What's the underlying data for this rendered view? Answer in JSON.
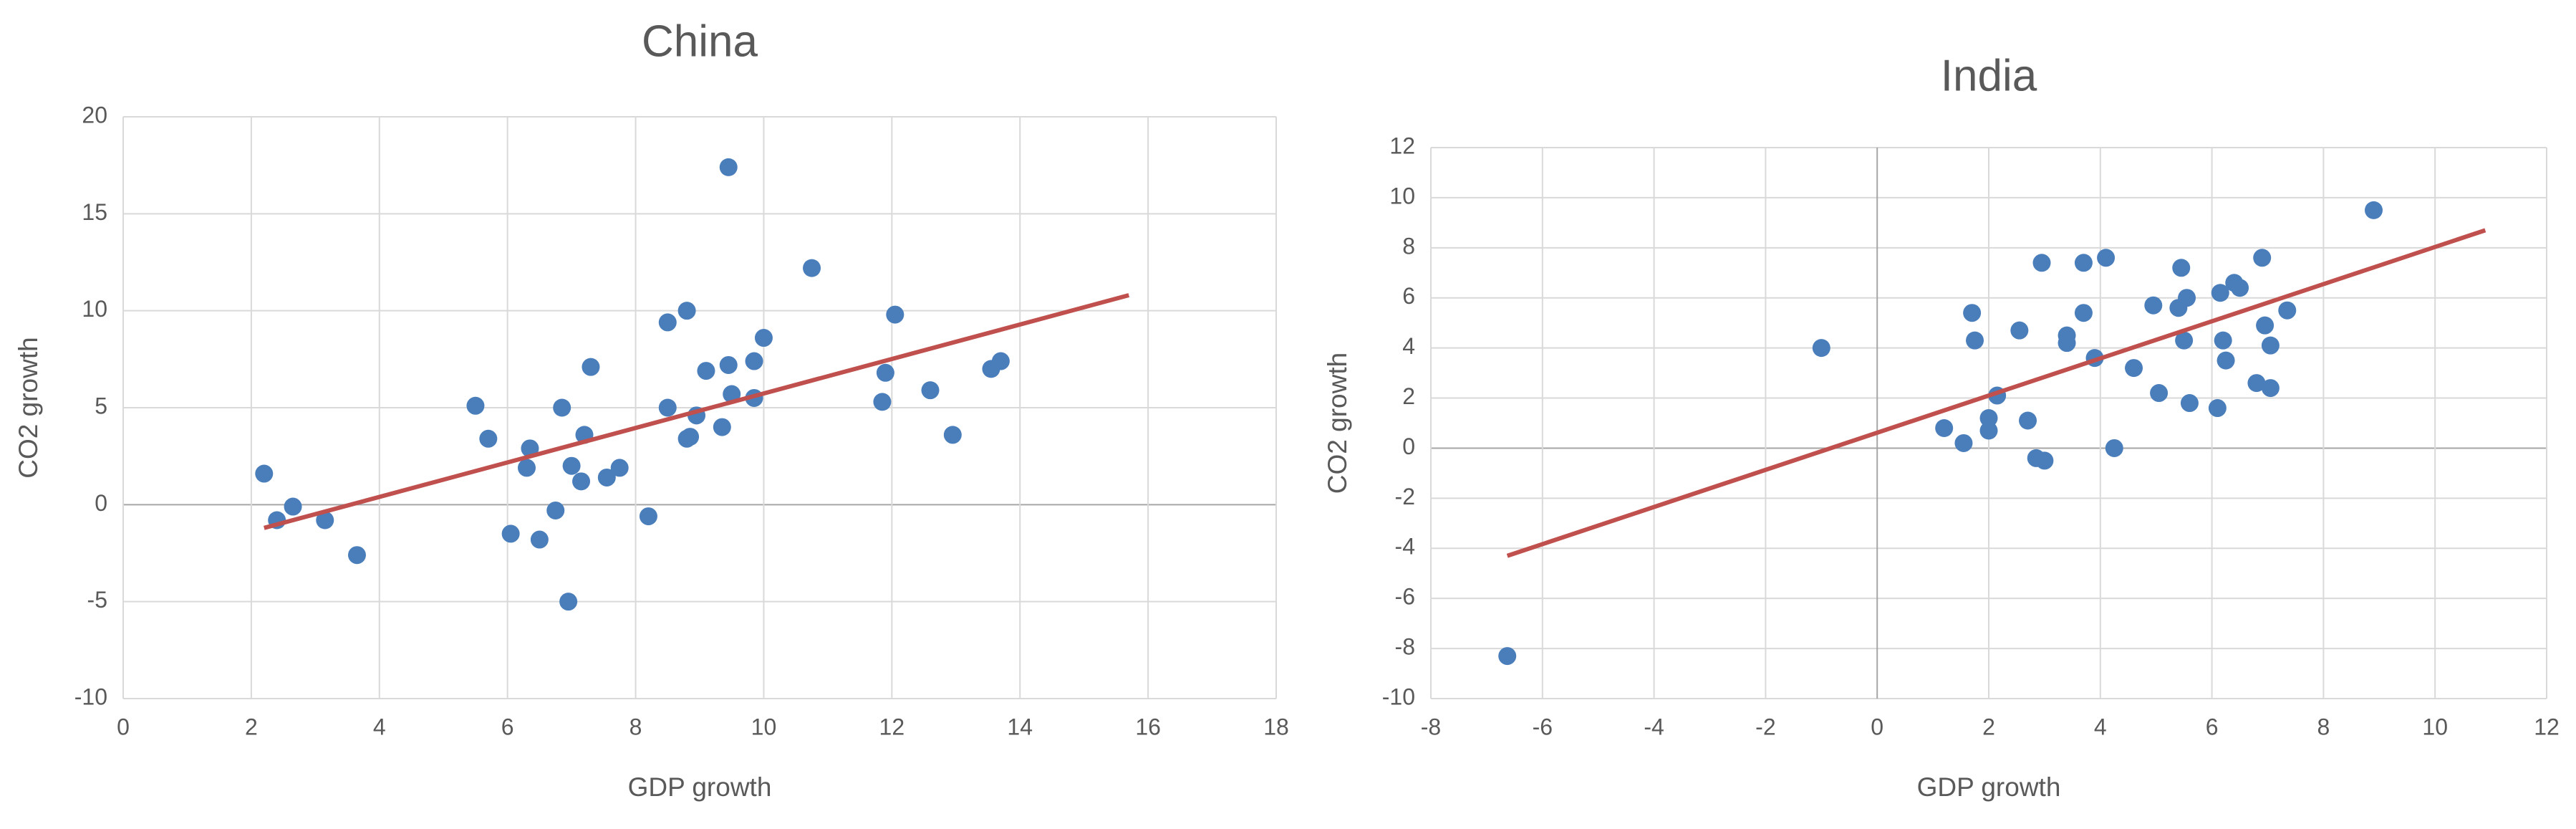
{
  "chart_data": [
    {
      "type": "scatter",
      "title": "China",
      "x_label": "GDP growth",
      "y_label": "CO2 growth",
      "xlim": [
        0,
        18
      ],
      "xticks": [
        0,
        2,
        4,
        6,
        8,
        10,
        12,
        14,
        16,
        18
      ],
      "ylim": [
        -10,
        20
      ],
      "yticks": [
        -10,
        -5,
        0,
        5,
        10,
        15,
        20
      ],
      "grid": true,
      "color": "#4a7ebb",
      "trendline_color": "#c0504d",
      "x": [
        2.2,
        2.4,
        2.65,
        3.15,
        3.65,
        5.5,
        5.7,
        6.05,
        6.3,
        6.35,
        6.5,
        6.75,
        6.85,
        6.95,
        7.0,
        7.15,
        7.2,
        7.3,
        7.55,
        7.75,
        8.2,
        8.5,
        8.5,
        8.8,
        8.8,
        8.85,
        8.95,
        9.1,
        9.35,
        9.45,
        9.45,
        9.5,
        9.85,
        9.85,
        10.0,
        10.75,
        11.85,
        11.9,
        12.05,
        12.6,
        12.95,
        13.55,
        13.7
      ],
      "values": [
        1.6,
        -0.8,
        -0.1,
        -0.8,
        -2.6,
        5.1,
        3.4,
        -1.5,
        1.9,
        2.9,
        -1.8,
        -0.3,
        5.0,
        -5.0,
        2.0,
        1.2,
        3.6,
        7.1,
        1.4,
        1.9,
        -0.6,
        5.0,
        9.4,
        10.0,
        3.4,
        3.5,
        4.6,
        6.9,
        4.0,
        7.2,
        17.4,
        5.7,
        7.4,
        5.5,
        8.6,
        12.2,
        5.3,
        6.8,
        9.8,
        5.9,
        3.6,
        7.0,
        7.4
      ],
      "trendline": {
        "x": [
          2.2,
          15.7
        ],
        "y": [
          -1.2,
          10.8
        ]
      }
    },
    {
      "type": "scatter",
      "title": "India",
      "x_label": "GDP growth",
      "y_label": "CO2 growth",
      "xlim": [
        -8,
        12
      ],
      "xticks": [
        -8,
        -6,
        -4,
        -2,
        0,
        2,
        4,
        6,
        8,
        10,
        12
      ],
      "ylim": [
        -10,
        12
      ],
      "yticks": [
        -10,
        -8,
        -6,
        -4,
        -2,
        0,
        2,
        4,
        6,
        8,
        10,
        12
      ],
      "grid": true,
      "color": "#4a7ebb",
      "trendline_color": "#c0504d",
      "x": [
        -6.63,
        -1.0,
        1.2,
        1.55,
        1.7,
        1.75,
        2.0,
        2.0,
        2.15,
        2.55,
        2.7,
        2.85,
        2.95,
        3.0,
        3.4,
        3.4,
        3.7,
        3.7,
        3.9,
        4.1,
        4.25,
        4.6,
        4.95,
        5.05,
        5.4,
        5.45,
        5.5,
        5.55,
        5.6,
        6.1,
        6.15,
        6.2,
        6.25,
        6.4,
        6.5,
        6.8,
        6.9,
        6.95,
        7.05,
        7.05,
        7.35,
        8.9
      ],
      "values": [
        -8.3,
        4.0,
        0.8,
        0.2,
        5.4,
        4.3,
        1.2,
        0.7,
        2.1,
        4.7,
        1.1,
        -0.4,
        7.4,
        -0.5,
        4.5,
        4.2,
        5.4,
        7.4,
        3.6,
        7.6,
        0.0,
        3.2,
        5.7,
        2.2,
        5.6,
        7.2,
        4.3,
        6.0,
        1.8,
        1.6,
        6.2,
        4.3,
        3.5,
        6.6,
        6.4,
        2.6,
        7.6,
        4.9,
        2.4,
        4.1,
        5.5,
        9.5
      ],
      "trendline": {
        "x": [
          -6.63,
          10.9
        ],
        "y": [
          -4.3,
          8.7
        ]
      }
    }
  ]
}
